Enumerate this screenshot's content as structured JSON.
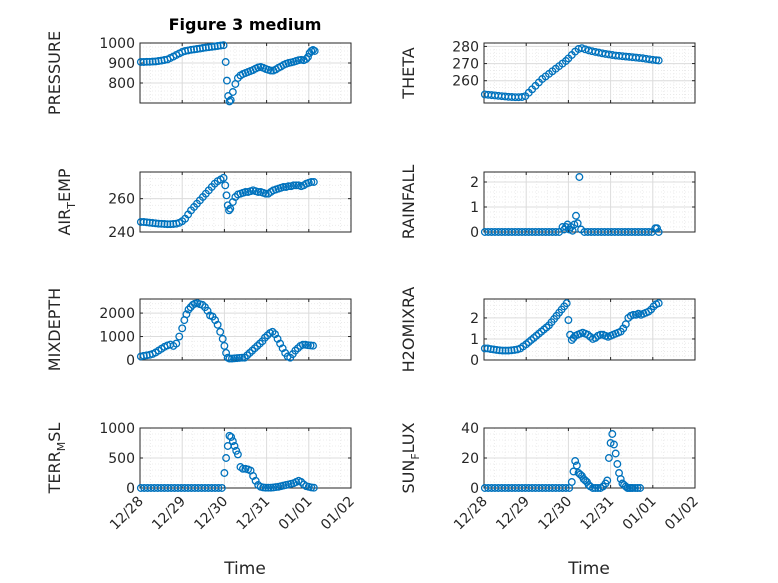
{
  "figure": {
    "title": "Figure 3 medium"
  },
  "x_tick_labels": [
    "12/28",
    "12/29",
    "12/30",
    "12/31",
    "01/01",
    "01/02"
  ],
  "x_label": "Time",
  "colors": {
    "marker": "#0072BD",
    "axis": "#262626",
    "grid": "#dcdcdc",
    "minor_grid": "#e8e8e8"
  },
  "chart_data": [
    {
      "type": "scatter",
      "id": "pressure",
      "ylabel": "PRESSURE",
      "ylabel_sub": "",
      "title": "Figure 3 medium",
      "xlabel": "",
      "ylim": [
        700,
        1000
      ],
      "yticks": [
        800,
        900,
        1000
      ],
      "grid": true,
      "x": [
        0.02,
        0.09,
        0.16,
        0.23,
        0.3,
        0.37,
        0.44,
        0.51,
        0.58,
        0.65,
        0.72,
        0.79,
        0.86,
        0.93,
        1.0,
        1.07,
        1.14,
        1.21,
        1.28,
        1.35,
        1.42,
        1.49,
        1.56,
        1.63,
        1.7,
        1.77,
        1.84,
        1.91,
        1.98,
        2.03,
        2.06,
        2.09,
        2.12,
        2.15,
        2.2,
        2.26,
        2.32,
        2.38,
        2.44,
        2.5,
        2.56,
        2.62,
        2.68,
        2.74,
        2.8,
        2.86,
        2.92,
        2.98,
        3.04,
        3.1,
        3.16,
        3.22,
        3.28,
        3.34,
        3.4,
        3.46,
        3.52,
        3.58,
        3.64,
        3.7,
        3.76,
        3.82,
        3.88,
        3.94,
        3.98,
        4.02,
        4.06,
        4.1,
        4.14
      ],
      "y": [
        905,
        905,
        906,
        906,
        907,
        908,
        910,
        912,
        915,
        918,
        925,
        932,
        940,
        948,
        955,
        960,
        963,
        966,
        968,
        970,
        972,
        975,
        977,
        979,
        981,
        983,
        985,
        987,
        989,
        905,
        812,
        735,
        708,
        715,
        755,
        795,
        825,
        838,
        845,
        850,
        855,
        860,
        865,
        872,
        878,
        880,
        876,
        870,
        866,
        862,
        862,
        868,
        876,
        882,
        890,
        896,
        900,
        903,
        906,
        910,
        914,
        916,
        914,
        920,
        930,
        950,
        960,
        965,
        960
      ]
    },
    {
      "type": "scatter",
      "id": "theta",
      "ylabel": "THETA",
      "ylabel_sub": "",
      "title": "",
      "xlabel": "",
      "ylim": [
        247,
        282
      ],
      "yticks": [
        260,
        270,
        280
      ],
      "grid": true,
      "x": [
        0.02,
        0.1,
        0.18,
        0.26,
        0.34,
        0.42,
        0.5,
        0.58,
        0.66,
        0.74,
        0.82,
        0.9,
        0.98,
        1.06,
        1.14,
        1.22,
        1.3,
        1.38,
        1.46,
        1.54,
        1.62,
        1.7,
        1.78,
        1.86,
        1.94,
        2.0,
        2.08,
        2.16,
        2.24,
        2.32,
        2.4,
        2.48,
        2.56,
        2.64,
        2.72,
        2.8,
        2.88,
        2.96,
        3.04,
        3.12,
        3.2,
        3.28,
        3.36,
        3.44,
        3.52,
        3.6,
        3.68,
        3.76,
        3.84,
        3.92,
        4.0,
        4.08,
        4.14
      ],
      "y": [
        252,
        251.8,
        251.6,
        251.4,
        251.2,
        251,
        250.8,
        250.6,
        250.5,
        250.4,
        250.4,
        250.5,
        251,
        253,
        255,
        257,
        259,
        261,
        262.5,
        264,
        265.5,
        267,
        268.5,
        270,
        271.5,
        273,
        275,
        277,
        278.5,
        279,
        278.3,
        277.7,
        277.2,
        276.8,
        276.4,
        276,
        275.6,
        275.3,
        275,
        274.7,
        274.5,
        274.3,
        274.1,
        273.9,
        273.7,
        273.5,
        273.3,
        273.1,
        272.8,
        272.5,
        272.2,
        272,
        271.8
      ]
    },
    {
      "type": "scatter",
      "id": "air_temp",
      "ylabel": "AIR",
      "ylabel_sub": "T",
      "ylabel_suffix": "EMP",
      "title": "",
      "xlabel": "",
      "ylim": [
        240,
        276
      ],
      "yticks": [
        240,
        260
      ],
      "grid": true,
      "x": [
        0.02,
        0.09,
        0.16,
        0.23,
        0.3,
        0.37,
        0.44,
        0.51,
        0.58,
        0.65,
        0.72,
        0.79,
        0.86,
        0.93,
        1.0,
        1.07,
        1.14,
        1.21,
        1.28,
        1.35,
        1.42,
        1.49,
        1.56,
        1.63,
        1.7,
        1.77,
        1.84,
        1.91,
        1.98,
        2.02,
        2.05,
        2.08,
        2.11,
        2.14,
        2.2,
        2.26,
        2.32,
        2.38,
        2.44,
        2.5,
        2.56,
        2.62,
        2.68,
        2.74,
        2.8,
        2.86,
        2.92,
        2.98,
        3.04,
        3.1,
        3.16,
        3.22,
        3.28,
        3.34,
        3.4,
        3.46,
        3.52,
        3.58,
        3.64,
        3.7,
        3.76,
        3.82,
        3.88,
        3.94,
        4.0,
        4.06,
        4.12
      ],
      "y": [
        246,
        246,
        245.8,
        245.6,
        245.4,
        245.2,
        245,
        244.9,
        244.8,
        244.7,
        244.7,
        244.8,
        245,
        245.5,
        246.5,
        248,
        250.5,
        253,
        255,
        257,
        259,
        261,
        263,
        265,
        267,
        269,
        270.5,
        271.5,
        272.5,
        268,
        262,
        256,
        253,
        254,
        258,
        261,
        262.5,
        263,
        263.5,
        264,
        264,
        264.5,
        265,
        264.5,
        264,
        264,
        263.5,
        263,
        263,
        264,
        265,
        265.5,
        266,
        266.5,
        267,
        267,
        267.5,
        267.5,
        268,
        268,
        268,
        267.5,
        268,
        269,
        269.5,
        270,
        270
      ]
    },
    {
      "type": "scatter",
      "id": "rainfall",
      "ylabel": "RAINFALL",
      "ylabel_sub": "",
      "title": "",
      "xlabel": "",
      "ylim": [
        0,
        2.4
      ],
      "yticks": [
        0,
        1,
        2
      ],
      "grid": true,
      "x": [
        0.02,
        0.1,
        0.18,
        0.26,
        0.34,
        0.42,
        0.5,
        0.58,
        0.66,
        0.74,
        0.82,
        0.9,
        0.98,
        1.06,
        1.14,
        1.22,
        1.3,
        1.38,
        1.46,
        1.54,
        1.62,
        1.7,
        1.78,
        1.86,
        1.9,
        1.94,
        1.98,
        2.02,
        2.06,
        2.1,
        2.14,
        2.18,
        2.22,
        2.26,
        2.3,
        2.38,
        2.46,
        2.54,
        2.62,
        2.7,
        2.78,
        2.86,
        2.94,
        3.02,
        3.1,
        3.18,
        3.26,
        3.34,
        3.42,
        3.5,
        3.58,
        3.66,
        3.74,
        3.82,
        3.9,
        3.98,
        4.06,
        4.1,
        4.14
      ],
      "y": [
        0,
        0,
        0,
        0,
        0,
        0,
        0,
        0,
        0,
        0,
        0,
        0,
        0,
        0,
        0,
        0,
        0,
        0,
        0,
        0,
        0,
        0,
        0,
        0.2,
        0.1,
        0.2,
        0.3,
        0.1,
        0.2,
        0.05,
        0.3,
        0.65,
        0.35,
        2.2,
        0.1,
        0,
        0,
        0,
        0,
        0,
        0,
        0,
        0,
        0,
        0,
        0,
        0,
        0,
        0,
        0,
        0,
        0,
        0,
        0,
        0,
        0,
        0.15,
        0.15,
        0
      ]
    },
    {
      "type": "scatter",
      "id": "mixdepth",
      "ylabel": "MIXDEPTH",
      "ylabel_sub": "",
      "title": "",
      "xlabel": "",
      "ylim": [
        0,
        2600
      ],
      "yticks": [
        0,
        1000,
        2000
      ],
      "grid": true,
      "x": [
        0.02,
        0.09,
        0.16,
        0.23,
        0.3,
        0.37,
        0.44,
        0.51,
        0.58,
        0.65,
        0.72,
        0.79,
        0.86,
        0.93,
        1.0,
        1.05,
        1.1,
        1.15,
        1.2,
        1.25,
        1.3,
        1.36,
        1.42,
        1.48,
        1.54,
        1.6,
        1.66,
        1.72,
        1.78,
        1.84,
        1.9,
        1.96,
        2.0,
        2.04,
        2.08,
        2.12,
        2.18,
        2.24,
        2.3,
        2.36,
        2.42,
        2.48,
        2.54,
        2.6,
        2.66,
        2.72,
        2.78,
        2.84,
        2.9,
        2.96,
        3.02,
        3.08,
        3.14,
        3.2,
        3.26,
        3.32,
        3.38,
        3.44,
        3.5,
        3.56,
        3.62,
        3.68,
        3.74,
        3.8,
        3.86,
        3.92,
        3.98,
        4.04,
        4.1
      ],
      "y": [
        150,
        180,
        200,
        220,
        260,
        320,
        400,
        480,
        560,
        620,
        660,
        600,
        700,
        1000,
        1350,
        1700,
        1950,
        2150,
        2250,
        2350,
        2400,
        2420,
        2380,
        2350,
        2250,
        2100,
        1900,
        1850,
        1700,
        1500,
        1200,
        900,
        600,
        300,
        100,
        60,
        60,
        70,
        80,
        90,
        100,
        100,
        200,
        300,
        400,
        500,
        600,
        700,
        800,
        950,
        1050,
        1150,
        1200,
        1100,
        900,
        700,
        500,
        300,
        150,
        100,
        250,
        400,
        500,
        600,
        650,
        650,
        630,
        620,
        610
      ]
    },
    {
      "type": "scatter",
      "id": "h2omixra",
      "ylabel": "H2OMIXRA",
      "ylabel_sub": "",
      "title": "",
      "xlabel": "",
      "ylim": [
        0,
        2.9
      ],
      "yticks": [
        0,
        1,
        2
      ],
      "grid": true,
      "x": [
        0.02,
        0.09,
        0.16,
        0.23,
        0.3,
        0.37,
        0.44,
        0.51,
        0.58,
        0.65,
        0.72,
        0.79,
        0.86,
        0.93,
        1.0,
        1.06,
        1.12,
        1.18,
        1.24,
        1.3,
        1.36,
        1.42,
        1.48,
        1.54,
        1.6,
        1.66,
        1.72,
        1.78,
        1.84,
        1.9,
        1.96,
        2.0,
        2.04,
        2.08,
        2.12,
        2.16,
        2.22,
        2.28,
        2.34,
        2.4,
        2.46,
        2.52,
        2.58,
        2.64,
        2.7,
        2.76,
        2.82,
        2.88,
        2.94,
        3.0,
        3.06,
        3.12,
        3.18,
        3.24,
        3.3,
        3.36,
        3.42,
        3.48,
        3.54,
        3.6,
        3.66,
        3.72,
        3.78,
        3.84,
        3.9,
        3.96,
        4.02,
        4.08,
        4.14
      ],
      "y": [
        0.55,
        0.55,
        0.52,
        0.5,
        0.48,
        0.46,
        0.45,
        0.45,
        0.45,
        0.46,
        0.48,
        0.5,
        0.55,
        0.65,
        0.75,
        0.85,
        0.95,
        1.05,
        1.15,
        1.25,
        1.35,
        1.45,
        1.55,
        1.65,
        1.8,
        1.95,
        2.1,
        2.25,
        2.4,
        2.55,
        2.7,
        1.9,
        1.2,
        0.95,
        1.05,
        1.15,
        1.2,
        1.25,
        1.3,
        1.25,
        1.2,
        1.1,
        1.0,
        1.05,
        1.15,
        1.2,
        1.2,
        1.15,
        1.1,
        1.15,
        1.2,
        1.25,
        1.3,
        1.35,
        1.5,
        1.7,
        2.0,
        2.1,
        2.15,
        2.15,
        2.2,
        2.15,
        2.2,
        2.25,
        2.3,
        2.4,
        2.55,
        2.65,
        2.7
      ]
    },
    {
      "type": "scatter",
      "id": "terr_msl",
      "ylabel": "TERR",
      "ylabel_sub": "M",
      "ylabel_suffix": "SL",
      "title": "",
      "xlabel": "Time",
      "ylim": [
        0,
        1000
      ],
      "yticks": [
        0,
        500,
        1000
      ],
      "grid": true,
      "x": [
        0.02,
        0.1,
        0.18,
        0.26,
        0.34,
        0.42,
        0.5,
        0.58,
        0.66,
        0.74,
        0.82,
        0.9,
        0.98,
        1.06,
        1.14,
        1.22,
        1.3,
        1.38,
        1.46,
        1.54,
        1.62,
        1.7,
        1.78,
        1.86,
        1.94,
        2.0,
        2.04,
        2.08,
        2.12,
        2.16,
        2.2,
        2.24,
        2.28,
        2.32,
        2.38,
        2.44,
        2.5,
        2.56,
        2.62,
        2.68,
        2.74,
        2.8,
        2.86,
        2.92,
        2.98,
        3.04,
        3.1,
        3.16,
        3.22,
        3.28,
        3.34,
        3.4,
        3.46,
        3.52,
        3.58,
        3.64,
        3.7,
        3.76,
        3.82,
        3.88,
        3.94,
        4.0,
        4.06,
        4.12
      ],
      "y": [
        0,
        0,
        0,
        0,
        0,
        0,
        0,
        0,
        0,
        0,
        0,
        0,
        0,
        0,
        0,
        0,
        0,
        0,
        0,
        0,
        0,
        0,
        0,
        0,
        0,
        250,
        500,
        700,
        870,
        850,
        780,
        700,
        620,
        560,
        350,
        320,
        320,
        310,
        290,
        200,
        120,
        50,
        20,
        10,
        5,
        5,
        5,
        10,
        15,
        20,
        30,
        40,
        50,
        60,
        70,
        80,
        100,
        120,
        100,
        60,
        30,
        20,
        10,
        5
      ]
    },
    {
      "type": "scatter",
      "id": "sun_flux",
      "ylabel": "SUN",
      "ylabel_sub": "F",
      "ylabel_suffix": "LUX",
      "title": "",
      "xlabel": "Time",
      "ylim": [
        0,
        40
      ],
      "yticks": [
        0,
        20,
        40
      ],
      "grid": true,
      "x": [
        0.02,
        0.1,
        0.18,
        0.26,
        0.34,
        0.42,
        0.5,
        0.58,
        0.66,
        0.74,
        0.82,
        0.9,
        0.98,
        1.06,
        1.14,
        1.22,
        1.3,
        1.38,
        1.46,
        1.54,
        1.62,
        1.7,
        1.78,
        1.86,
        1.94,
        2.02,
        2.08,
        2.12,
        2.16,
        2.2,
        2.24,
        2.28,
        2.32,
        2.36,
        2.4,
        2.44,
        2.48,
        2.52,
        2.58,
        2.64,
        2.7,
        2.76,
        2.82,
        2.88,
        2.92,
        2.96,
        3.0,
        3.04,
        3.08,
        3.12,
        3.16,
        3.2,
        3.24,
        3.28,
        3.32,
        3.36,
        3.4,
        3.44,
        3.48,
        3.52,
        3.58,
        3.64,
        3.7
      ],
      "y": [
        0,
        0,
        0,
        0,
        0,
        0,
        0,
        0,
        0,
        0,
        0,
        0,
        0,
        0,
        0,
        0,
        0,
        0,
        0,
        0,
        0,
        0,
        0,
        0,
        0,
        0,
        4,
        11,
        18,
        15,
        10,
        9,
        8,
        6,
        5,
        4,
        2,
        1,
        0,
        0,
        0,
        0,
        1,
        3,
        5,
        20,
        30,
        36,
        29,
        23,
        16,
        10,
        6,
        3,
        2,
        1,
        0,
        0,
        0,
        0,
        0,
        0,
        0
      ]
    }
  ]
}
